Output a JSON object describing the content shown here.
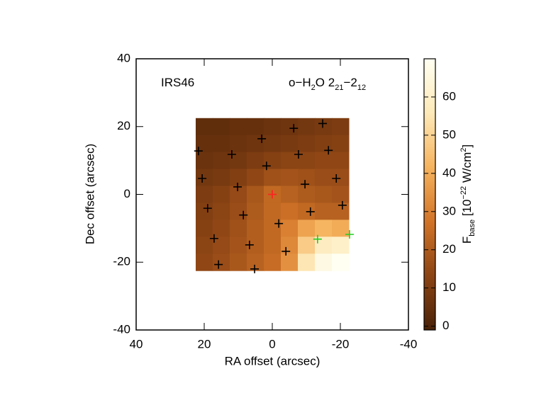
{
  "chart_data": {
    "type": "heatmap",
    "annotations": [
      {
        "parts": [
          {
            "text": "IRS46"
          }
        ]
      },
      {
        "parts": [
          {
            "text": "o−H"
          },
          {
            "text": "2",
            "sub": true
          },
          {
            "text": "O 2"
          },
          {
            "text": "21",
            "sub": true
          },
          {
            "text": "−2"
          },
          {
            "text": "12",
            "sub": true
          }
        ]
      }
    ],
    "xlabel": "RA offset (arcsec)",
    "ylabel": "Dec offset (arcsec)",
    "xlim": [
      40,
      -40
    ],
    "ylim": [
      -40,
      40
    ],
    "xticks": [
      40,
      20,
      0,
      -20,
      -40
    ],
    "yticks": [
      -40,
      -20,
      0,
      20,
      40
    ],
    "x": [
      20,
      15,
      10,
      5,
      0,
      -5,
      -10,
      -15,
      -20
    ],
    "y": [
      20,
      15,
      10,
      5,
      0,
      -5,
      -10,
      -15,
      -20
    ],
    "z": [
      [
        4,
        4,
        5,
        5,
        6,
        7,
        8,
        9,
        10
      ],
      [
        5,
        5,
        6,
        7,
        8,
        9,
        10,
        11,
        12
      ],
      [
        6,
        7,
        8,
        10,
        12,
        13,
        13,
        14,
        14
      ],
      [
        8,
        9,
        11,
        14,
        17,
        18,
        17,
        16,
        16
      ],
      [
        10,
        12,
        15,
        19,
        24,
        22,
        20,
        19,
        18
      ],
      [
        11,
        13,
        16,
        20,
        24,
        26,
        24,
        22,
        22
      ],
      [
        12,
        14,
        17,
        21,
        24,
        30,
        38,
        42,
        40
      ],
      [
        13,
        15,
        18,
        21,
        24,
        32,
        48,
        58,
        60
      ],
      [
        14,
        16,
        19,
        22,
        25,
        34,
        55,
        66,
        70
      ]
    ],
    "colormap": [
      "#4a2208",
      "#8c4414",
      "#d27428",
      "#f6b35e",
      "#fde9b8",
      "#fffff2"
    ],
    "clim": [
      -1,
      70
    ],
    "cticks": [
      0,
      10,
      20,
      30,
      40,
      50,
      60
    ],
    "clabel": {
      "parts": [
        {
          "text": "F"
        },
        {
          "text": "base",
          "sub": true
        },
        {
          "text": " [10"
        },
        {
          "text": "−22",
          "sup": true
        },
        {
          "text": " W/cm"
        },
        {
          "text": "2",
          "sup": true
        },
        {
          "text": "]"
        }
      ]
    },
    "markers": [
      {
        "color": "#000000",
        "x": [
          21.7,
          3.1,
          -6.3,
          -14.8,
          20.6,
          11.9,
          1.7,
          -7.7,
          -16.5,
          10.2,
          -9.6,
          -18.8,
          19.0,
          8.5,
          -11.2,
          -20.6,
          17.1,
          6.7,
          -1.9,
          -4.0,
          15.8,
          5.2
        ],
        "y": [
          12.8,
          16.4,
          19.5,
          20.9,
          4.7,
          11.8,
          8.4,
          11.8,
          13.0,
          2.2,
          3.0,
          4.7,
          -4.1,
          -6.1,
          -5.1,
          -3.2,
          -13.0,
          -14.9,
          -8.6,
          -16.8,
          -20.7,
          -22.0
        ]
      },
      {
        "color": "#ff2020",
        "x": [
          0
        ],
        "y": [
          0
        ]
      },
      {
        "color": "#22cc22",
        "x": [
          -13.3,
          -22.7
        ],
        "y": [
          -13.2,
          -11.8
        ]
      }
    ]
  }
}
